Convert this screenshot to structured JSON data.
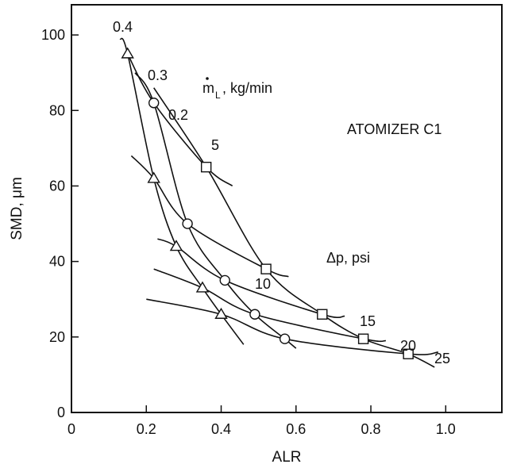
{
  "chart_data": {
    "type": "line",
    "xlabel": "ALR",
    "ylabel": "SMD, μm",
    "xlim": [
      0,
      1.15
    ],
    "ylim": [
      0,
      108
    ],
    "x_ticks": [
      "0",
      "0.2",
      "0.4",
      "0.6",
      "0.8",
      "1.0"
    ],
    "x_tick_values": [
      0,
      0.2,
      0.4,
      0.6,
      0.8,
      1.0
    ],
    "y_ticks": [
      "0",
      "20",
      "40",
      "60",
      "80",
      "100"
    ],
    "y_tick_values": [
      0,
      20,
      40,
      60,
      80,
      100
    ],
    "grid": false,
    "annotations": {
      "atomizer": "ATOMIZER C1",
      "flow_rate_base": "m",
      "flow_rate_sub": "L",
      "flow_rate_rest": ", kg/min",
      "pressure": "Δp, psi"
    },
    "series": [
      {
        "name": "0.4",
        "group": "mass_flow",
        "marker": "triangle",
        "x": [
          0.13,
          0.15,
          0.22,
          0.28,
          0.35,
          0.4,
          0.46
        ],
        "y": [
          99,
          95,
          62,
          44,
          33,
          26,
          18
        ],
        "points": [
          [
            0.15,
            95
          ],
          [
            0.22,
            62
          ],
          [
            0.28,
            44
          ],
          [
            0.35,
            33
          ],
          [
            0.4,
            26
          ]
        ]
      },
      {
        "name": "0.3",
        "group": "mass_flow",
        "marker": "circle",
        "x": [
          0.17,
          0.22,
          0.31,
          0.41,
          0.49,
          0.57,
          0.6
        ],
        "y": [
          90,
          82,
          50,
          35,
          26,
          19.5,
          17
        ],
        "points": [
          [
            0.22,
            82
          ],
          [
            0.31,
            50
          ],
          [
            0.41,
            35
          ],
          [
            0.49,
            26
          ],
          [
            0.57,
            19.5
          ]
        ]
      },
      {
        "name": "0.2",
        "group": "mass_flow",
        "marker": "square",
        "x": [
          0.22,
          0.36,
          0.52,
          0.67,
          0.78,
          0.9,
          0.97
        ],
        "y": [
          86,
          65,
          38,
          26,
          19.5,
          15.5,
          12
        ],
        "points": [
          [
            0.36,
            65
          ],
          [
            0.52,
            38
          ],
          [
            0.67,
            26
          ],
          [
            0.78,
            19.5
          ],
          [
            0.9,
            15.5
          ]
        ]
      },
      {
        "name": "5",
        "group": "pressure",
        "x": [
          0.15,
          0.22,
          0.36,
          0.43
        ],
        "y": [
          95,
          82,
          65,
          60
        ]
      },
      {
        "name": "10",
        "group": "pressure",
        "x": [
          0.16,
          0.22,
          0.31,
          0.52,
          0.58
        ],
        "y": [
          68,
          62,
          50,
          38,
          36
        ]
      },
      {
        "name": "15",
        "group": "pressure",
        "x": [
          0.23,
          0.28,
          0.41,
          0.67,
          0.73
        ],
        "y": [
          46,
          44,
          35,
          26,
          25.5
        ]
      },
      {
        "name": "20",
        "group": "pressure",
        "x": [
          0.22,
          0.35,
          0.49,
          0.78,
          0.84
        ],
        "y": [
          38,
          33,
          26,
          19.5,
          19
        ]
      },
      {
        "name": "25",
        "group": "pressure",
        "x": [
          0.2,
          0.4,
          0.57,
          0.9,
          0.98
        ],
        "y": [
          30,
          26,
          19.5,
          15.5,
          16
        ]
      }
    ]
  }
}
